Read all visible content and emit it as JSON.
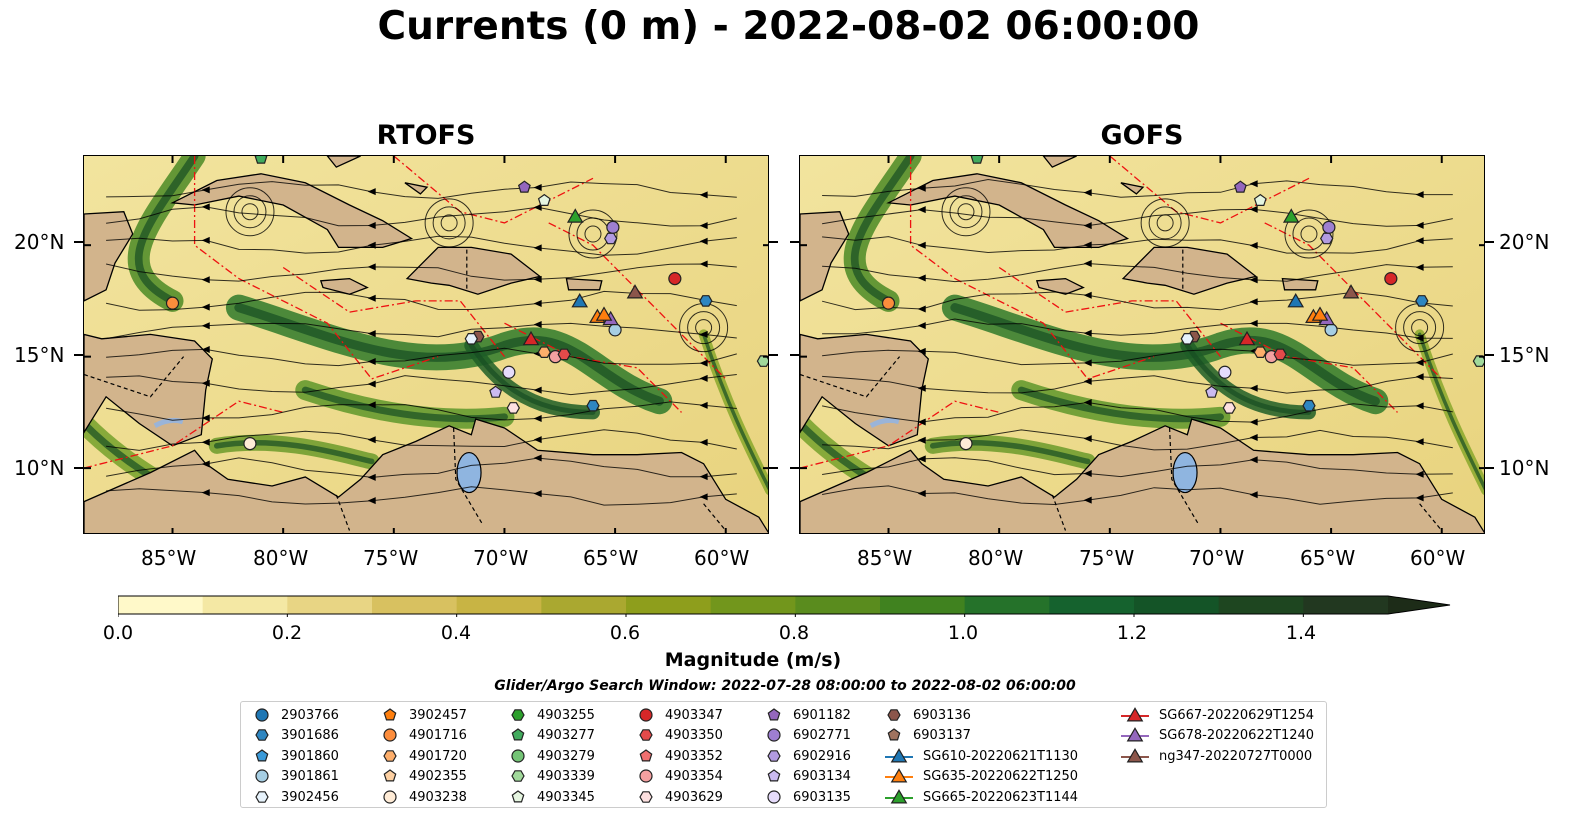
{
  "title": "Currents (0 m) - 2022-08-02 06:00:00",
  "panels": [
    {
      "title": "RTOFS"
    },
    {
      "title": "GOFS"
    }
  ],
  "axes": {
    "lat_labels": [
      "20°N",
      "15°N",
      "10°N"
    ],
    "lon_labels": [
      "85°W",
      "80°W",
      "75°W",
      "70°W",
      "65°W",
      "60°W"
    ]
  },
  "colorbar": {
    "label": "Magnitude (m/s)",
    "ticks": [
      "0.0",
      "0.2",
      "0.4",
      "0.6",
      "0.8",
      "1.0",
      "1.2",
      "1.4"
    ],
    "range": [
      0.0,
      1.5
    ],
    "extend": "max",
    "colors": [
      "#fff9c9",
      "#f4e8a4",
      "#e8d584",
      "#d8c160",
      "#c8b444",
      "#aaa830",
      "#8e9e1c",
      "#72961c",
      "#5a8c1e",
      "#40821f",
      "#25722a",
      "#15622e",
      "#145427",
      "#1e4620",
      "#223820",
      "#1d2c18"
    ]
  },
  "search_window": "Glider/Argo Search Window: 2022-07-28 08:00:00 to 2022-08-02 06:00:00",
  "legend": {
    "items": [
      {
        "label": "2903766",
        "marker": "circle",
        "color": "#1f77b4"
      },
      {
        "label": "3901686",
        "marker": "hexagon",
        "color": "#2e86c1"
      },
      {
        "label": "3901860",
        "marker": "pentagon",
        "color": "#3a9ad9"
      },
      {
        "label": "3901861",
        "marker": "circle",
        "color": "#a6cee3"
      },
      {
        "label": "3902456",
        "marker": "hexagon",
        "color": "#e6f2fb"
      },
      {
        "label": "3902457",
        "marker": "pentagon",
        "color": "#ff7f0e"
      },
      {
        "label": "4901716",
        "marker": "circle",
        "color": "#fd8d3c"
      },
      {
        "label": "4901720",
        "marker": "hexagon",
        "color": "#fdae6b"
      },
      {
        "label": "4902355",
        "marker": "pentagon",
        "color": "#fdd0a2"
      },
      {
        "label": "4903238",
        "marker": "circle",
        "color": "#feebd6"
      },
      {
        "label": "4903255",
        "marker": "hexagon",
        "color": "#2ca02c"
      },
      {
        "label": "4903277",
        "marker": "pentagon",
        "color": "#41ab5d"
      },
      {
        "label": "4903279",
        "marker": "circle",
        "color": "#74c476"
      },
      {
        "label": "4903339",
        "marker": "hexagon",
        "color": "#a1d99b"
      },
      {
        "label": "4903345",
        "marker": "pentagon",
        "color": "#e5f5e0"
      },
      {
        "label": "4903347",
        "marker": "circle",
        "color": "#d62728"
      },
      {
        "label": "4903350",
        "marker": "hexagon",
        "color": "#e34a4a"
      },
      {
        "label": "4903352",
        "marker": "pentagon",
        "color": "#f07070"
      },
      {
        "label": "4903354",
        "marker": "circle",
        "color": "#f4a0a0"
      },
      {
        "label": "4903629",
        "marker": "hexagon",
        "color": "#fde0e0"
      },
      {
        "label": "6901182",
        "marker": "pentagon",
        "color": "#9467bd"
      },
      {
        "label": "6902771",
        "marker": "circle",
        "color": "#9e7fd1"
      },
      {
        "label": "6902916",
        "marker": "hexagon",
        "color": "#b29be0"
      },
      {
        "label": "6903134",
        "marker": "pentagon",
        "color": "#cbbaf0"
      },
      {
        "label": "6903135",
        "marker": "circle",
        "color": "#e6dcfb"
      },
      {
        "label": "6903136",
        "marker": "hexagon",
        "color": "#8c564b"
      },
      {
        "label": "6903137",
        "marker": "pentagon",
        "color": "#a0735f"
      },
      {
        "label": "SG610-20220621T1130",
        "marker": "triangle-line",
        "color": "#1f77b4"
      },
      {
        "label": "SG635-20220622T1250",
        "marker": "triangle-line",
        "color": "#ff7f0e"
      },
      {
        "label": "SG665-20220623T1144",
        "marker": "triangle-line",
        "color": "#2ca02c"
      },
      {
        "label": "SG667-20220629T1254",
        "marker": "triangle-line",
        "color": "#d62728"
      },
      {
        "label": "SG678-20220622T1240",
        "marker": "triangle-line",
        "color": "#9467bd"
      },
      {
        "label": "ng347-20220727T0000",
        "marker": "triangle-line",
        "color": "#8c564b"
      }
    ]
  }
}
